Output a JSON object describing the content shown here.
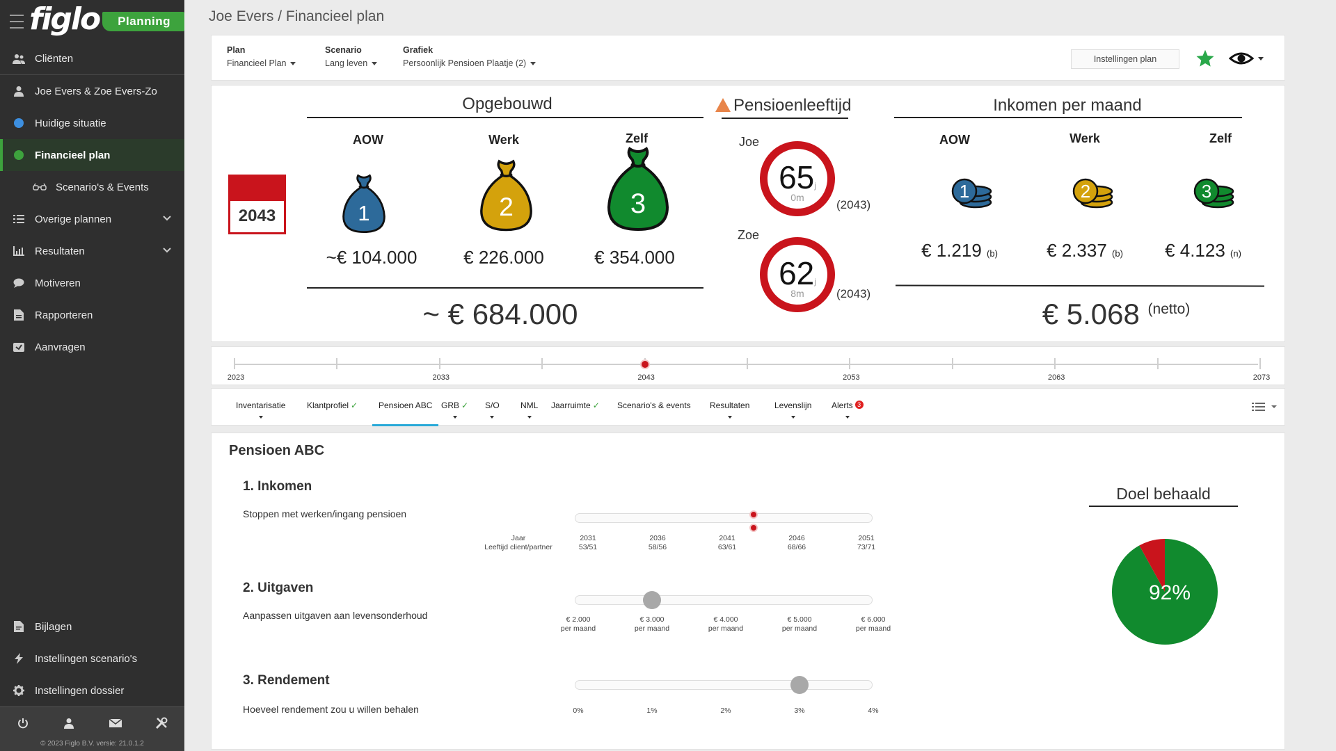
{
  "app": {
    "logo": "figlo",
    "badge": "Planning",
    "page_title": "Joe Evers / Financieel plan"
  },
  "sidebar": {
    "items": [
      {
        "label": "Cliënten",
        "icon": "users-icon"
      },
      {
        "label": "Joe Evers & Zoe Evers-Zo",
        "icon": "person-icon"
      },
      {
        "label": "Huidige situatie",
        "icon": "blue-dot-icon"
      },
      {
        "label": "Financieel plan",
        "icon": "green-dot-icon"
      },
      {
        "label": "Scenario's & Events",
        "icon": "glasses-icon"
      },
      {
        "label": "Overige plannen",
        "icon": "list-icon"
      },
      {
        "label": "Resultaten",
        "icon": "chart-icon"
      },
      {
        "label": "Motiveren",
        "icon": "chat-icon"
      },
      {
        "label": "Rapporteren",
        "icon": "document-icon"
      },
      {
        "label": "Aanvragen",
        "icon": "send-icon"
      }
    ],
    "bottom_items": [
      {
        "label": "Bijlagen",
        "icon": "attachment-icon"
      },
      {
        "label": "Instellingen scenario's",
        "icon": "bolt-icon"
      },
      {
        "label": "Instellingen dossier",
        "icon": "gear-icon"
      }
    ],
    "copyright": "© 2023 Figlo B.V. versie: 21.0.1.2"
  },
  "toolbar": {
    "plan_label": "Plan",
    "plan_value": "Financieel Plan",
    "scenario_label": "Scenario",
    "scenario_value": "Lang leven",
    "grafiek_label": "Grafiek",
    "grafiek_value": "Persoonlijk Pensioen Plaatje (2)",
    "settings_button": "Instellingen plan"
  },
  "overview": {
    "year": "2043",
    "opgebouwd": {
      "title": "Opgebouwd",
      "columns": [
        {
          "label": "AOW",
          "number": "1",
          "amount": "~€ 104.000",
          "color": "#2d6a9a"
        },
        {
          "label": "Werk",
          "number": "2",
          "amount": "€ 226.000",
          "color": "#d4a20c"
        },
        {
          "label": "Zelf",
          "number": "3",
          "amount": "€ 354.000",
          "color": "#118a2e"
        }
      ],
      "total": "~ € 684.000"
    },
    "pensioenleeftijd": {
      "title": "Pensioenleeftijd",
      "persons": [
        {
          "name": "Joe",
          "years": "65",
          "years_unit": "j",
          "months": "0m",
          "year": "(2043)"
        },
        {
          "name": "Zoe",
          "years": "62",
          "years_unit": "j",
          "months": "8m",
          "year": "(2043)"
        }
      ]
    },
    "inkomen": {
      "title": "Inkomen per maand",
      "columns": [
        {
          "label": "AOW",
          "number": "1",
          "amount": "€ 1.219",
          "tag": "(b)",
          "color": "#2d6a9a"
        },
        {
          "label": "Werk",
          "number": "2",
          "amount": "€ 2.337",
          "tag": "(b)",
          "color": "#d4a20c"
        },
        {
          "label": "Zelf",
          "number": "3",
          "amount": "€ 4.123",
          "tag": "(n)",
          "color": "#118a2e"
        }
      ],
      "total": "€ 5.068",
      "total_tag": "(netto)"
    }
  },
  "timeline": {
    "labels": [
      "2023",
      "2033",
      "2043",
      "2053",
      "2063",
      "2073"
    ],
    "selected": "2043"
  },
  "tabs": [
    {
      "label": "Inventarisatie",
      "check": "",
      "caret": true
    },
    {
      "label": "Klantprofiel",
      "check": "✓",
      "caret": false
    },
    {
      "label": "Pensioen ABC",
      "check": "",
      "caret": false
    },
    {
      "label": "GRB",
      "check": "✓",
      "caret": true
    },
    {
      "label": "S/O",
      "check": "",
      "caret": true
    },
    {
      "label": "NML",
      "check": "",
      "caret": true
    },
    {
      "label": "Jaarruimte",
      "check": "✓",
      "caret": false
    },
    {
      "label": "Scenario's & events",
      "check": "",
      "caret": false
    },
    {
      "label": "Resultaten",
      "check": "",
      "caret": true
    },
    {
      "label": "Levenslijn",
      "check": "",
      "caret": true
    },
    {
      "label": "Alerts",
      "check": "",
      "caret": true,
      "badge": "3"
    }
  ],
  "pension": {
    "title": "Pensioen ABC",
    "inkomen": {
      "heading": "1. Inkomen",
      "desc": "Stoppen met werken/ingang pensioen",
      "legend_line1": "Jaar",
      "legend_line2": "Leeftijd client/partner",
      "ticks": [
        {
          "year": "2031",
          "ages": "53/51"
        },
        {
          "year": "2036",
          "ages": "58/56"
        },
        {
          "year": "2041",
          "ages": "63/61"
        },
        {
          "year": "2046",
          "ages": "68/66"
        },
        {
          "year": "2051",
          "ages": "73/71"
        }
      ],
      "value": 2043
    },
    "uitgaven": {
      "heading": "2. Uitgaven",
      "desc": "Aanpassen uitgaven aan levensonderhoud",
      "ticks": [
        {
          "amount": "€ 2.000",
          "unit": "per maand"
        },
        {
          "amount": "€ 3.000",
          "unit": "per maand"
        },
        {
          "amount": "€ 4.000",
          "unit": "per maand"
        },
        {
          "amount": "€ 5.000",
          "unit": "per maand"
        },
        {
          "amount": "€ 6.000",
          "unit": "per maand"
        }
      ],
      "value": 3000
    },
    "rendement": {
      "heading": "3. Rendement",
      "desc": "Hoeveel rendement zou u willen behalen",
      "ticks": [
        "0%",
        "1%",
        "2%",
        "3%",
        "4%"
      ],
      "value": 3
    },
    "goal": {
      "title": "Doel behaald",
      "percent_label": "92%",
      "percent": 92,
      "achieved_color": "#118a2e",
      "missing_color": "#c9141c"
    }
  }
}
